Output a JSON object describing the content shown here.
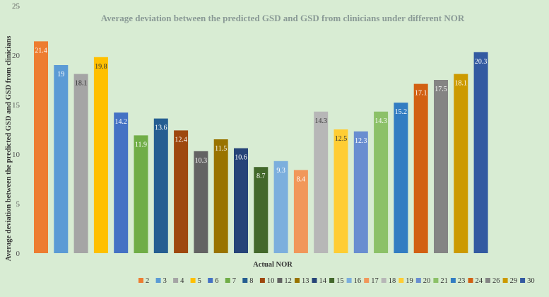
{
  "chart_data": {
    "type": "bar",
    "title": "Average deviation between the predicted GSD and GSD from clinicians under different NOR",
    "xlabel": "Actual NOR",
    "ylabel": "Average deviation between the predicted GSD and GSD from clinicians",
    "ylim": [
      0,
      25
    ],
    "yticks": [
      0,
      5,
      10,
      15,
      20,
      25
    ],
    "grid": false,
    "legend_position": "bottom",
    "categories": [
      "2",
      "3",
      "4",
      "5",
      "6",
      "7",
      "8",
      "10",
      "12",
      "13",
      "14",
      "15",
      "16",
      "17",
      "18",
      "19",
      "20",
      "21",
      "23",
      "24",
      "26",
      "29",
      "30"
    ],
    "values": [
      21.4,
      19,
      18.1,
      19.8,
      14.2,
      11.9,
      13.6,
      12.4,
      10.3,
      11.5,
      10.6,
      8.7,
      9.3,
      8.4,
      14.3,
      12.5,
      12.3,
      14.3,
      15.2,
      17.1,
      17.5,
      18.1,
      20.3
    ],
    "value_labels": [
      "21.4",
      "19",
      "18.1",
      "19.8",
      "14.2",
      "11.9",
      "13.6",
      "12.4",
      "10.3",
      "11.5",
      "10.6",
      "8.7",
      "9.3",
      "8.4",
      "14.3",
      "12.5",
      "12.3",
      "14.3",
      "15.2",
      "17.1",
      "17.5",
      "18.1",
      "20.3"
    ],
    "colors": [
      "#ed7d31",
      "#5b9bd5",
      "#a5a5a5",
      "#ffc000",
      "#4472c4",
      "#70ad47",
      "#255e91",
      "#9e480e",
      "#636363",
      "#997300",
      "#264478",
      "#43682b",
      "#7cafdd",
      "#f1975a",
      "#b7b7b7",
      "#ffcd33",
      "#698ed0",
      "#8cc168",
      "#327dc2",
      "#d26012",
      "#848484",
      "#cc9a00",
      "#335aa1"
    ]
  }
}
